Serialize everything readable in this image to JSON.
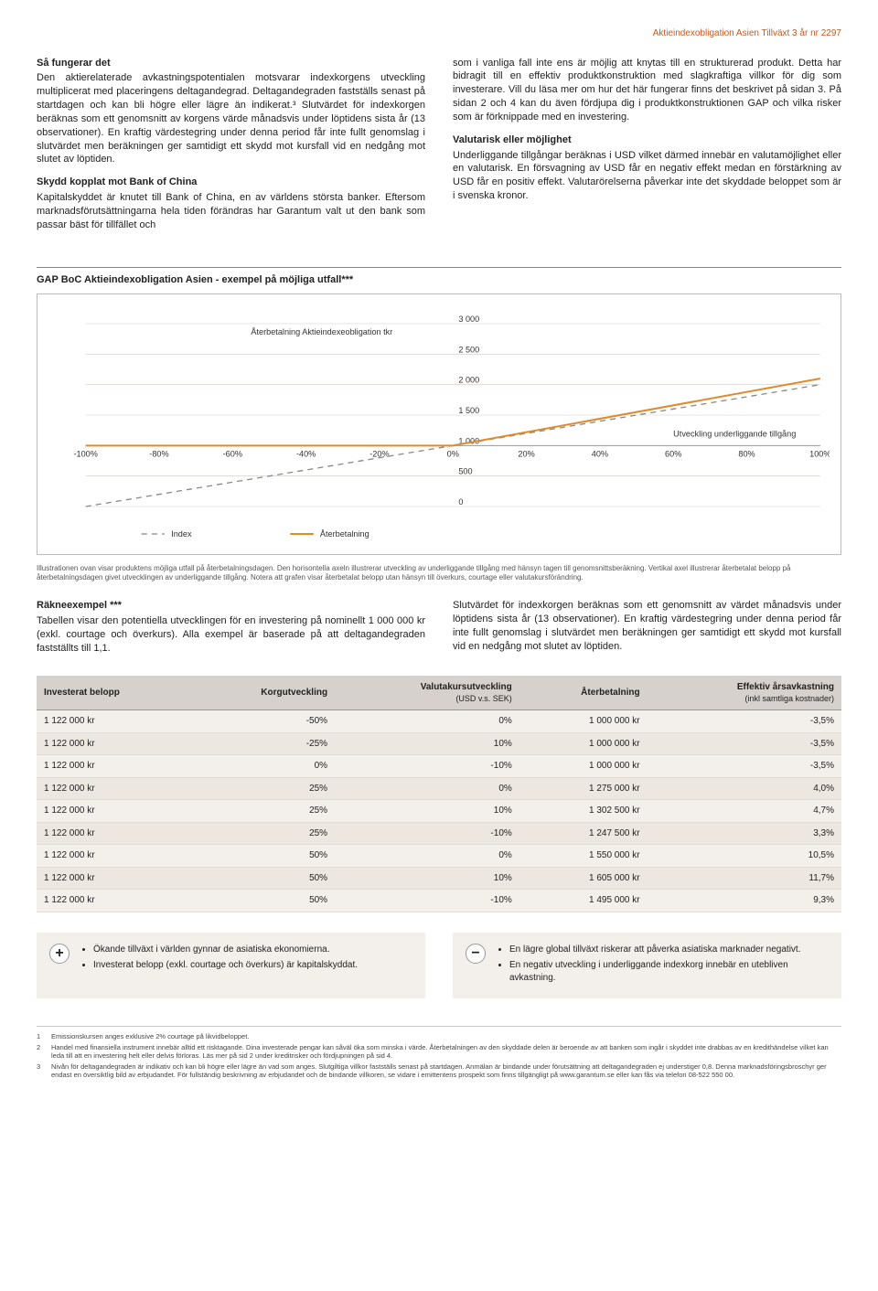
{
  "header": {
    "product_line": "Aktieindexobligation Asien Tillväxt 3 år nr 2297"
  },
  "intro": {
    "left": {
      "h1": "Så fungerar det",
      "p1": "Den aktierelaterade avkastningspotentialen motsvarar indexkorgens utveckling multiplicerat med placeringens deltagandegrad. Deltagandegraden fastställs senast på startdagen och kan bli högre eller lägre än indikerat.³ Slutvärdet för indexkorgen beräknas som ett genomsnitt av korgens värde månadsvis under löptidens sista år (13 observationer). En kraftig värdestegring under denna period får inte fullt genomslag i slutvärdet men beräkningen ger samtidigt ett skydd mot kursfall vid en nedgång mot slutet av löptiden.",
      "h2": "Skydd kopplat mot Bank of China",
      "p2": "Kapitalskyddet är knutet till Bank of China, en av världens största banker. Eftersom marknadsförutsättningarna hela tiden förändras har Garantum valt ut den bank som passar bäst för tillfället och"
    },
    "right": {
      "p1": "som i vanliga fall inte ens är möjlig att knytas till en strukturerad produkt. Detta har bidragit till en effektiv produktkonstruktion med slagkraftiga villkor för dig som investerare. Vill du läsa mer om hur det här fungerar finns det beskrivet på sidan 3. På sidan 2 och 4 kan du även fördjupa dig i produktkonstruktionen GAP och vilka risker som är förknippade med en investering.",
      "h2": "Valutarisk eller möjlighet",
      "p2": "Underliggande tillgångar beräknas i USD vilket därmed innebär en valutamöjlighet eller en valutarisk. En försvagning av USD får en negativ effekt medan en förstärkning av USD får en positiv effekt. Valutarörelserna påverkar inte det skyddade beloppet som är i svenska kronor."
    }
  },
  "chart": {
    "title": "GAP BoC Aktieindexobligation Asien - exempel på möjliga utfall***",
    "series_label_top": "Återbetalning Aktieindexeobligation tkr",
    "series_label_right": "Utveckling underliggande tillgång",
    "xlabels": [
      "-100%",
      "-80%",
      "-60%",
      "-40%",
      "-20%",
      "0%",
      "20%",
      "40%",
      "60%",
      "80%",
      "100%"
    ],
    "ylabels": [
      "0",
      "500",
      "1 000",
      "1 500",
      "2 000",
      "2 500",
      "3 000"
    ],
    "ylim": [
      0,
      3000
    ],
    "xlim": [
      -100,
      100
    ],
    "legend_index": "Index",
    "legend_repay": "Återbetalning",
    "colors": {
      "grid": "#cfcac4",
      "repay": "#e08a2b",
      "index": "#888888",
      "bg": "#ffffff"
    },
    "index_line": [
      {
        "x": -100,
        "y": 0
      },
      {
        "x": 100,
        "y": 2000
      }
    ],
    "repay_line": [
      {
        "x": -100,
        "y": 1000
      },
      {
        "x": 0,
        "y": 1000
      },
      {
        "x": 100,
        "y": 2100
      }
    ]
  },
  "chart_caption": "Illustrationen ovan visar produktens möjliga utfall på återbetalningsdagen. Den horisontella axeln illustrerar utveckling av underliggande tillgång med hänsyn tagen till genomsnittsberäkning. Vertikal axel illustrerar återbetalat belopp på återbetalningsdagen givet utvecklingen av underliggande tillgång. Notera att grafen visar återbetalat belopp utan hänsyn till överkurs, courtage eller valutakursförändring.",
  "example": {
    "left_h": "Räkneexempel ***",
    "left_p": "Tabellen visar den potentiella utvecklingen för en investering på nominellt 1 000 000 kr (exkl. courtage och överkurs). Alla exempel är baserade på att deltagandegraden fastställts till 1,1.",
    "right_p": "Slutvärdet för indexkorgen beräknas som ett genomsnitt av värdet månadsvis under löptidens sista år (13 observationer). En kraftig värdestegring under denna period får inte fullt genomslag i slutvärdet men beräkningen ger samtidigt ett skydd mot kursfall vid en nedgång mot slutet av löptiden."
  },
  "table": {
    "columns": [
      "Investerat belopp",
      "Korgutveckling",
      "Valutakursutveckling",
      "Återbetalning",
      "Effektiv årsavkastning"
    ],
    "subcolumns": [
      "",
      "",
      "(USD v.s. SEK)",
      "",
      "(inkl samtliga kostnader)"
    ],
    "rows": [
      [
        "1 122 000 kr",
        "-50%",
        "0%",
        "1 000 000 kr",
        "-3,5%"
      ],
      [
        "1 122 000 kr",
        "-25%",
        "10%",
        "1 000 000 kr",
        "-3,5%"
      ],
      [
        "1 122 000 kr",
        "0%",
        "-10%",
        "1 000 000 kr",
        "-3,5%"
      ],
      [
        "1 122 000 kr",
        "25%",
        "0%",
        "1 275 000 kr",
        "4,0%"
      ],
      [
        "1 122 000 kr",
        "25%",
        "10%",
        "1 302 500 kr",
        "4,7%"
      ],
      [
        "1 122 000 kr",
        "25%",
        "-10%",
        "1 247 500 kr",
        "3,3%"
      ],
      [
        "1 122 000 kr",
        "50%",
        "0%",
        "1 550 000 kr",
        "10,5%"
      ],
      [
        "1 122 000 kr",
        "50%",
        "10%",
        "1 605 000 kr",
        "11,7%"
      ],
      [
        "1 122 000 kr",
        "50%",
        "-10%",
        "1 495 000 kr",
        "9,3%"
      ]
    ]
  },
  "pros": [
    "Ökande tillväxt i världen gynnar de asiatiska ekonomierna.",
    "Investerat belopp (exkl. courtage och överkurs) är kapitalskyddat."
  ],
  "cons": [
    "En lägre global tillväxt riskerar att påverka asiatiska marknader negativt.",
    "En negativ utveckling i underliggande indexkorg innebär en utebliven avkastning."
  ],
  "footnotes": [
    "Emissionskursen anges exklusive 2% courtage på likvidbeloppet.",
    "Handel med finansiella instrument innebär alltid ett risktagande. Dina investerade pengar kan såväl öka som minska i värde. Återbetalningen av den skyddade delen är beroende av att banken som ingår i skyddet inte drabbas av en kredithändelse vilket kan leda till att en investering helt eller delvis förloras. Läs mer på sid 2 under kreditrisker och fördjupningen på sid 4.",
    "Nivån för deltagandegraden är indikativ och kan bli högre eller lägre än vad som anges. Slutgiltiga villkor fastställs senast på startdagen. Anmälan är bindande under förutsättning att deltagandegraden ej understiger 0,8. Denna marknadsföringsbroschyr ger endast en översiktlig bild av erbjudandet. För fullständig beskrivning av erbjudandet och de bindande villkoren, se vidare i emittentens prospekt som finns tillgängligt på www.garantum.se eller kan fås via telefon 08-522 550 00."
  ]
}
